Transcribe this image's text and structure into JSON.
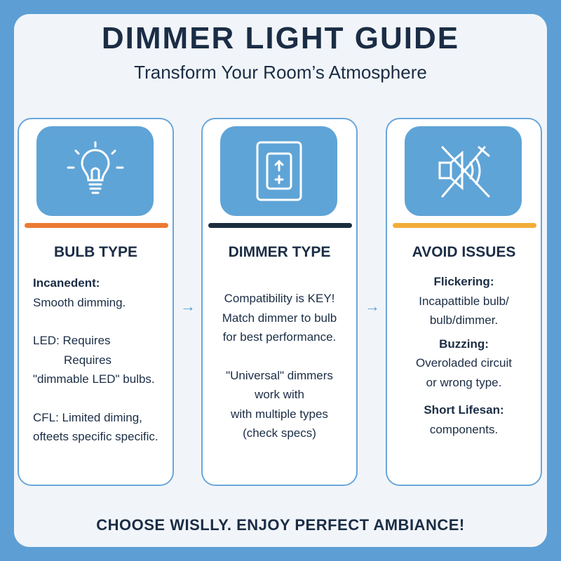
{
  "header": {
    "title": "DIMMER LIGHT GUIDE",
    "subtitle": "Transform Your Room’s Atmosphere"
  },
  "colors": {
    "accent_blue": "#5fa4d7",
    "bar_orange": "#ec7a32",
    "bar_navy": "#1b2d3d",
    "bar_yellow": "#f2ad38",
    "text": "#1b2d45"
  },
  "cards": [
    {
      "icon": "lightbulb-icon",
      "heading": "BULB TYPE",
      "lines": [
        "Incanedent:",
        "Smooth dimming.",
        "LED: Requires",
        "Requires",
        "\"dimmable LED\" bulbs.",
        "CFL: Limited diming,",
        "ofteets specific specific."
      ]
    },
    {
      "icon": "dimmer-switch-icon",
      "heading": "DIMMER TYPE",
      "lines": [
        "Compatibility is KEY!",
        "Match dimmer to bulb",
        "for best performance.",
        "\"Universal\" dimmers",
        "work with",
        "with multiple types",
        "(check specs)"
      ]
    },
    {
      "icon": "muted-speaker-icon",
      "heading": "AVOID ISSUES",
      "lines": [
        "Flickering:",
        "Incapattible bulb/",
        "bulb/dimmer.",
        "Buzzing:",
        "Overoladed circuit",
        "or wrong type.",
        "Short Lifesan:",
        "components."
      ]
    }
  ],
  "arrows": [
    "→",
    "→"
  ],
  "footer": "CHOOSE WISLLY. ENJOY PERFECT AMBIANCE!"
}
